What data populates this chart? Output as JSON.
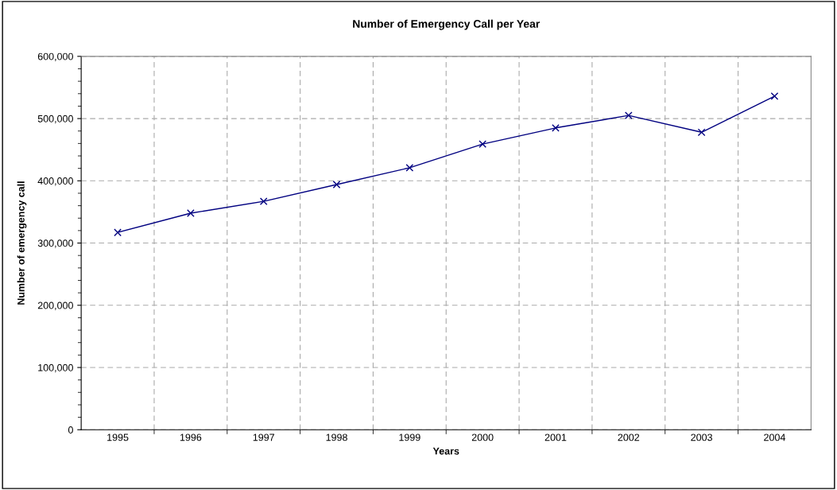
{
  "chart_data": {
    "type": "line",
    "title": "Number of Emergency Call per Year",
    "xlabel": "Years",
    "ylabel": "Number of emergency call",
    "categories": [
      "1995",
      "1996",
      "1997",
      "1998",
      "1999",
      "2000",
      "2001",
      "2002",
      "2003",
      "2004"
    ],
    "series": [
      {
        "color": "#000080",
        "values": [
          317000,
          348000,
          367000,
          394000,
          421000,
          459000,
          485000,
          505000,
          478000,
          536000
        ]
      }
    ],
    "ylim": [
      0,
      600000
    ],
    "yticks": [
      {
        "value": 0,
        "label": "0"
      },
      {
        "value": 100000,
        "label": "100,000"
      },
      {
        "value": 200000,
        "label": "200,000"
      },
      {
        "value": 300000,
        "label": "300,000"
      },
      {
        "value": 400000,
        "label": "400,000"
      },
      {
        "value": 500000,
        "label": "500,000"
      },
      {
        "value": 600000,
        "label": "600,000"
      }
    ],
    "grid": true,
    "marker": "cross",
    "line_style": "solid",
    "legend": false
  }
}
